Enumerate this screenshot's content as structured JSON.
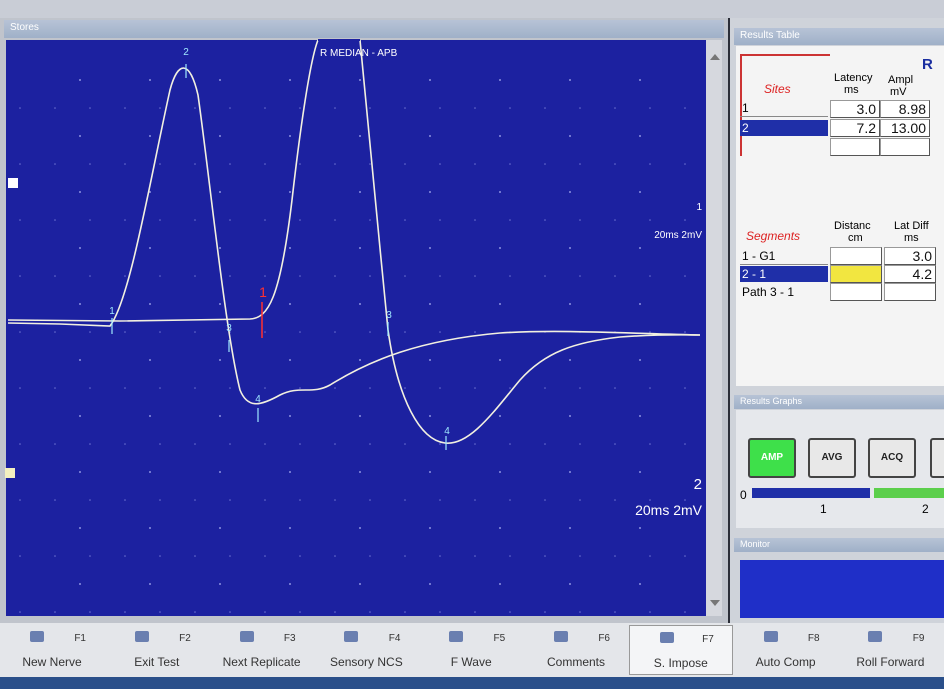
{
  "stores": {
    "title": "Stores"
  },
  "waveform": {
    "title": "R MEDIAN - APB",
    "markers": [
      "1",
      "2",
      "3",
      "4",
      "1",
      "3",
      "4"
    ],
    "channels": [
      {
        "number": "1",
        "scale": "20ms 2mV"
      },
      {
        "number": "2",
        "scale": "20ms 2mV"
      }
    ]
  },
  "results_table": {
    "title": "Results Table",
    "side": "R",
    "sites": {
      "header": "Sites",
      "columns": [
        {
          "name": "Latency",
          "unit": "ms"
        },
        {
          "name": "Ampl",
          "unit": "mV"
        }
      ],
      "rows": [
        [
          "1",
          "3.0",
          "8.98"
        ],
        [
          "2",
          "7.2",
          "13.00"
        ]
      ]
    },
    "segments": {
      "header": "Segments",
      "columns": [
        {
          "name": "Distanc",
          "unit": "cm"
        },
        {
          "name": "Lat Diff",
          "unit": "ms"
        }
      ],
      "rows": [
        [
          "1 - G1",
          "3.0"
        ],
        [
          "2 - 1",
          "4.2"
        ],
        [
          "Path 3 - 1"
        ]
      ]
    }
  },
  "results_graphs": {
    "title": "Results Graphs",
    "buttons": [
      "AMP",
      "AVG",
      "ACQ"
    ],
    "slider": [
      "0",
      "1",
      "2"
    ]
  },
  "monitor": {
    "title": "Monitor"
  },
  "function_keys": [
    {
      "key": "F1",
      "label": "New Nerve"
    },
    {
      "key": "F2",
      "label": "Exit Test"
    },
    {
      "key": "F3",
      "label": "Next Replicate"
    },
    {
      "key": "F4",
      "label": "Sensory NCS"
    },
    {
      "key": "F5",
      "label": "F Wave"
    },
    {
      "key": "F6",
      "label": "Comments"
    },
    {
      "key": "F7",
      "label": "S. Impose"
    },
    {
      "key": "F8",
      "label": "Auto Comp"
    },
    {
      "key": "F9",
      "label": "Roll Forward"
    }
  ]
}
